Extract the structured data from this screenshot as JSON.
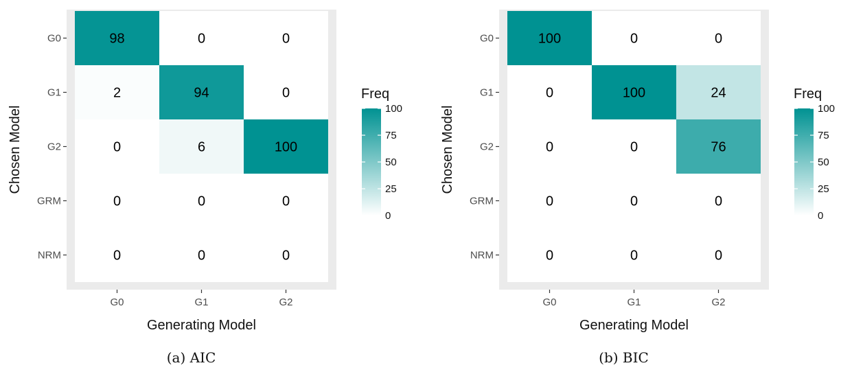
{
  "colors": {
    "low": "#ffffff",
    "high": "#009292",
    "panel_background": "#ebebeb",
    "tick_text": "#4d4d4d"
  },
  "chart_data": [
    {
      "type": "heatmap",
      "caption": "(a) AIC",
      "xlabel": "Generating Model",
      "ylabel": "Chosen Model",
      "x_categories": [
        "G0",
        "G1",
        "G2"
      ],
      "y_categories": [
        "G0",
        "G1",
        "G2",
        "GRM",
        "NRM"
      ],
      "values": [
        [
          98,
          0,
          0
        ],
        [
          2,
          94,
          0
        ],
        [
          0,
          6,
          100
        ],
        [
          0,
          0,
          0
        ],
        [
          0,
          0,
          0
        ]
      ],
      "legend": {
        "title": "Freq",
        "ticks": [
          100,
          75,
          50,
          25,
          0
        ],
        "range": [
          0,
          100
        ]
      }
    },
    {
      "type": "heatmap",
      "caption": "(b) BIC",
      "xlabel": "Generating Model",
      "ylabel": "Chosen Model",
      "x_categories": [
        "G0",
        "G1",
        "G2"
      ],
      "y_categories": [
        "G0",
        "G1",
        "G2",
        "GRM",
        "NRM"
      ],
      "values": [
        [
          100,
          0,
          0
        ],
        [
          0,
          100,
          24
        ],
        [
          0,
          0,
          76
        ],
        [
          0,
          0,
          0
        ],
        [
          0,
          0,
          0
        ]
      ],
      "legend": {
        "title": "Freq",
        "ticks": [
          100,
          75,
          50,
          25,
          0
        ],
        "range": [
          0,
          100
        ]
      }
    }
  ]
}
